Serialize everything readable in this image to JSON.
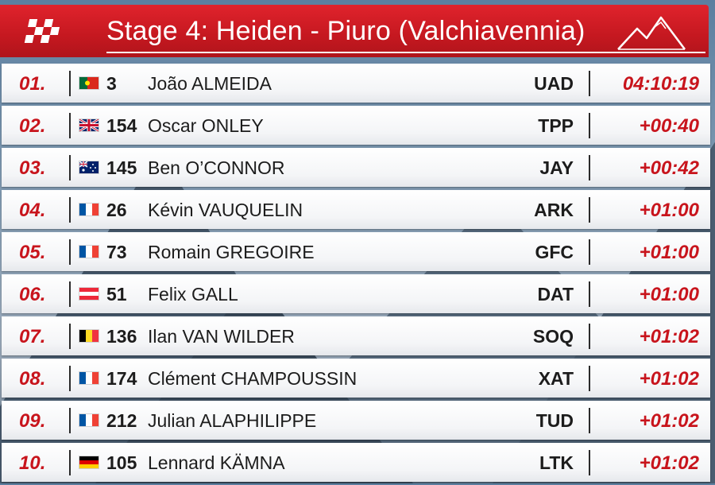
{
  "header": {
    "title": "Stage 4: Heiden - Piuro (Valchiavennia)",
    "accent_color": "#d91e26",
    "left_logo_icon": "checkered-flag-icon",
    "right_logo_icon": "mountain-icon"
  },
  "results": [
    {
      "position": "01.",
      "flag": "portugal-flag-icon",
      "number": "3",
      "rider": "João ALMEIDA",
      "team": "UAD",
      "time": "04:10:19"
    },
    {
      "position": "02.",
      "flag": "uk-flag-icon",
      "number": "154",
      "rider": "Oscar ONLEY",
      "team": "TPP",
      "time": "+00:40"
    },
    {
      "position": "03.",
      "flag": "australia-flag-icon",
      "number": "145",
      "rider": "Ben O’CONNOR",
      "team": "JAY",
      "time": "+00:42"
    },
    {
      "position": "04.",
      "flag": "france-flag-icon",
      "number": "26",
      "rider": "Kévin VAUQUELIN",
      "team": "ARK",
      "time": "+01:00"
    },
    {
      "position": "05.",
      "flag": "france-flag-icon",
      "number": "73",
      "rider": "Romain GREGOIRE",
      "team": "GFC",
      "time": "+01:00"
    },
    {
      "position": "06.",
      "flag": "austria-flag-icon",
      "number": "51",
      "rider": "Felix GALL",
      "team": "DAT",
      "time": "+01:00"
    },
    {
      "position": "07.",
      "flag": "belgium-flag-icon",
      "number": "136",
      "rider": "Ilan VAN WILDER",
      "team": "SOQ",
      "time": "+01:02"
    },
    {
      "position": "08.",
      "flag": "france-flag-icon",
      "number": "174",
      "rider": "Clément CHAMPOUSSIN",
      "team": "XAT",
      "time": "+01:02"
    },
    {
      "position": "09.",
      "flag": "france-flag-icon",
      "number": "212",
      "rider": "Julian ALAPHILIPPE",
      "team": "TUD",
      "time": "+01:02"
    },
    {
      "position": "10.",
      "flag": "germany-flag-icon",
      "number": "105",
      "rider": "Lennard KÄMNA",
      "team": "LTK",
      "time": "+01:02"
    }
  ]
}
